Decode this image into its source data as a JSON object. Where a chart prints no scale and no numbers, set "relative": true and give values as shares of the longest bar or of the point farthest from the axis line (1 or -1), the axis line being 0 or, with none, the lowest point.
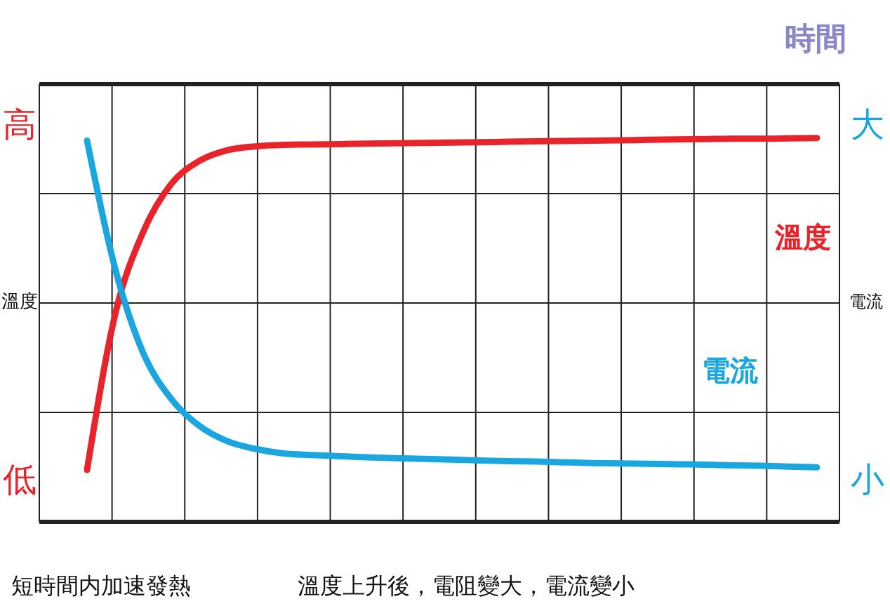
{
  "chart_data": {
    "type": "line",
    "relative": true,
    "xlabel": "時間",
    "ylabel": "溫度",
    "y2label": "電流",
    "grid": true,
    "legend": false,
    "categories": [
      null,
      null,
      null,
      null,
      null,
      null,
      null,
      null,
      null,
      null,
      null,
      null,
      null,
      null,
      null,
      null,
      null,
      null,
      null,
      null,
      null,
      null,
      null,
      null,
      null,
      null,
      null
    ],
    "series": [
      {
        "name": "溫度",
        "color": "#e8232a",
        "values": [
          0.135,
          0.54,
          0.755,
          0.88,
          0.94,
          0.968,
          0.978,
          0.982,
          0.983,
          0.984,
          0.985,
          0.986,
          0.987,
          0.988,
          0.989,
          0.99,
          0.991,
          0.992,
          0.993,
          0.994,
          0.995,
          0.996,
          0.997,
          0.998,
          0.998,
          0.999,
          1
        ]
      },
      {
        "name": "電流",
        "color": "#1aa7e0",
        "values": [
          0.993,
          0.66,
          0.44,
          0.32,
          0.25,
          0.21,
          0.19,
          0.178,
          0.174,
          0.171,
          0.168,
          0.166,
          0.164,
          0.162,
          0.16,
          0.158,
          0.157,
          0.155,
          0.153,
          0.152,
          0.151,
          0.15,
          0.149,
          0.147,
          0.146,
          0.144,
          0.142
        ]
      }
    ],
    "annotations": [
      "高",
      "低",
      "大",
      "小",
      "短時間内加速發熱",
      "溫度上升後，電阻變大，電流變小"
    ]
  }
}
